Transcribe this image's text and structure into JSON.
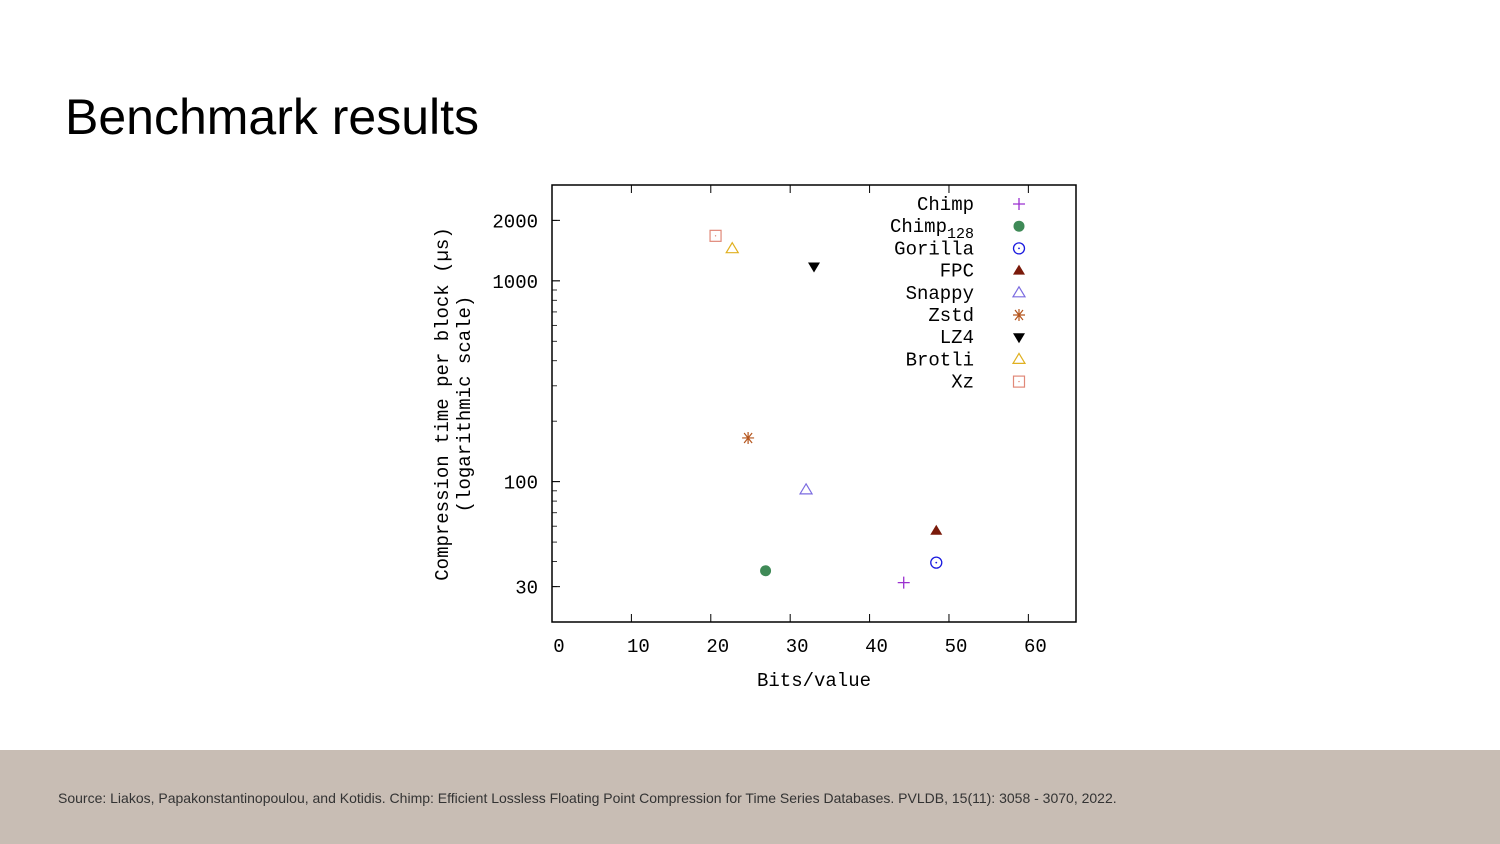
{
  "slide": {
    "title": "Benchmark results",
    "source": "Source: Liakos, Papakonstantinopoulou, and Kotidis. Chimp: Efficient Lossless Floating Point Compression for Time Series Databases. PVLDB, 15(11): 3058 - 3070, 2022."
  },
  "chart_data": {
    "type": "scatter",
    "xlabel": "Bits/value",
    "ylabel": "Compression time per block (µs)",
    "ylabel2": "(logarithmic scale)",
    "xlim": [
      0,
      66
    ],
    "ylim": [
      20,
      3000
    ],
    "yscale": "log",
    "xticks": [
      0,
      10,
      20,
      30,
      40,
      50,
      60
    ],
    "yticks": [
      30,
      100,
      1000,
      2000
    ],
    "grid": false,
    "legend_position": "top-right",
    "series": [
      {
        "name": "Chimp",
        "sub": "",
        "marker": "plus",
        "color": "#9b30d0",
        "x": 44.3,
        "y": 31.4
      },
      {
        "name": "Chimp",
        "sub": "128",
        "marker": "filled-circle",
        "color": "#3f8a57",
        "x": 26.9,
        "y": 36
      },
      {
        "name": "Gorilla",
        "sub": "",
        "marker": "dot-circle",
        "color": "#1a1adf",
        "x": 48.4,
        "y": 39.5
      },
      {
        "name": "FPC",
        "sub": "",
        "marker": "filled-triangle",
        "color": "#7a1a0a",
        "x": 48.4,
        "y": 56.9
      },
      {
        "name": "Snappy",
        "sub": "",
        "marker": "open-triangle",
        "color": "#7b6be0",
        "x": 32,
        "y": 91
      },
      {
        "name": "Zstd",
        "sub": "",
        "marker": "asterisk",
        "color": "#b5561e",
        "x": 24.7,
        "y": 165
      },
      {
        "name": "LZ4",
        "sub": "",
        "marker": "filled-triangle-down",
        "color": "#000000",
        "x": 33,
        "y": 1178
      },
      {
        "name": "Brotli",
        "sub": "",
        "marker": "open-triangle",
        "color": "#e0b020",
        "x": 22.7,
        "y": 1445
      },
      {
        "name": "Xz",
        "sub": "",
        "marker": "dot-square",
        "color": "#e08878",
        "x": 20.6,
        "y": 1675
      }
    ]
  }
}
